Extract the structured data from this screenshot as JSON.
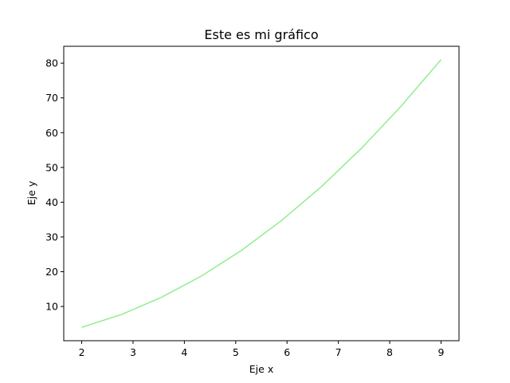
{
  "chart_data": {
    "type": "line",
    "title": "Este es mi gráfico",
    "xlabel": "Eje x",
    "ylabel": "Eje y",
    "xlim": [
      1.65,
      9.35
    ],
    "ylim": [
      0.15,
      84.85
    ],
    "x_ticks": [
      2,
      3,
      4,
      5,
      6,
      7,
      8,
      9
    ],
    "y_ticks": [
      10,
      20,
      30,
      40,
      50,
      60,
      70,
      80
    ],
    "grid": false,
    "series": [
      {
        "color": "#90ee90",
        "x": [
          2,
          2.7778,
          3.5556,
          4.3333,
          5.1111,
          5.8889,
          6.6667,
          7.4444,
          8.2222,
          9
        ],
        "y": [
          4,
          7.716,
          12.642,
          18.778,
          26.123,
          34.679,
          44.444,
          55.42,
          67.605,
          81
        ]
      }
    ]
  }
}
